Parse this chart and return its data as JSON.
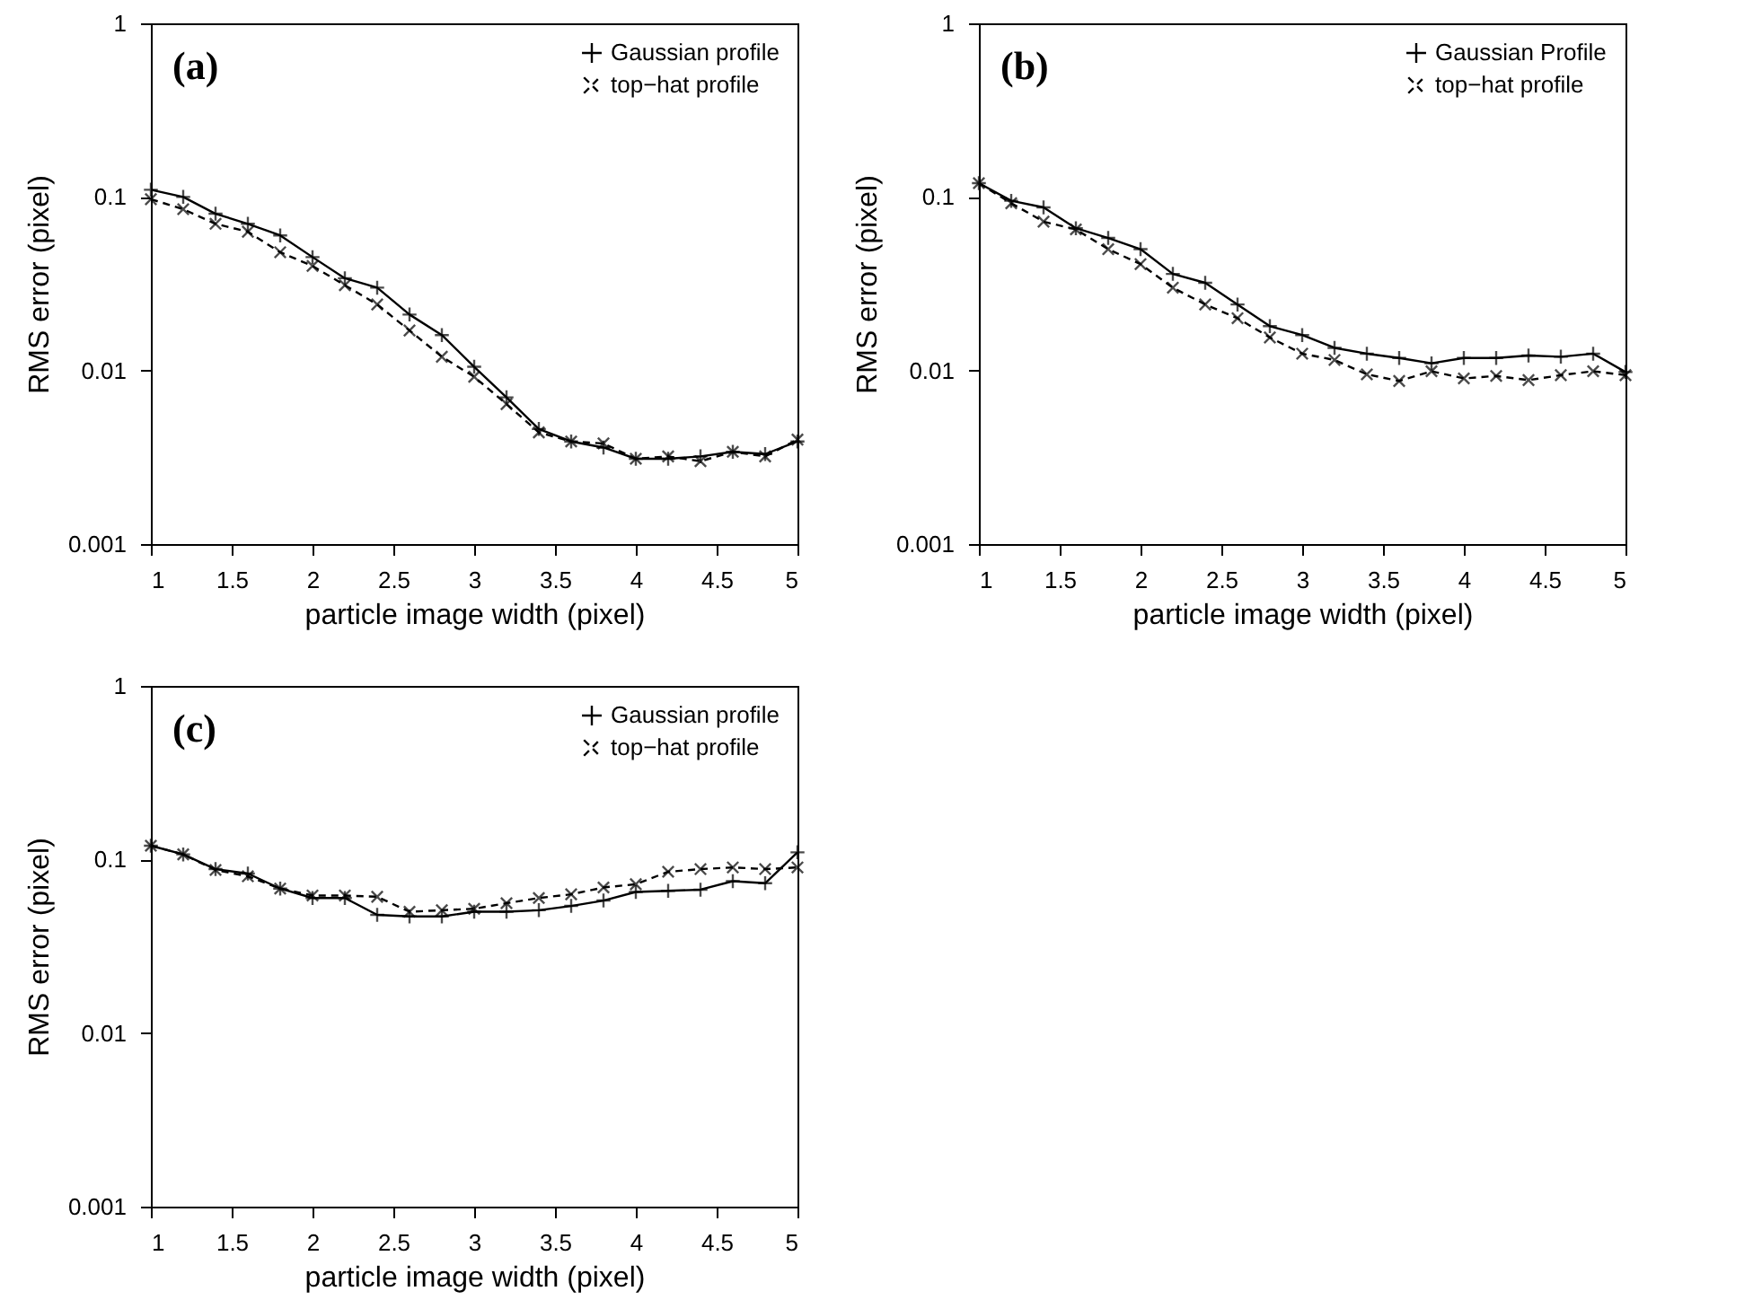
{
  "chart_data": [
    {
      "type": "line",
      "annotations": [
        "(a)"
      ],
      "xlabel": "particle image width (pixel)",
      "ylabel": "RMS error (pixel)",
      "log": "y",
      "xlim": [
        1,
        5
      ],
      "ylim": [
        0.001,
        1
      ],
      "xticks": [
        1,
        1.5,
        2,
        2.5,
        3,
        3.5,
        4,
        4.5,
        5
      ],
      "yticks": [
        0.001,
        0.01,
        0.1,
        1
      ],
      "legend": "top right",
      "marker": "cross",
      "x": [
        1,
        1.2,
        1.4,
        1.6,
        1.8,
        2,
        2.2,
        2.4,
        2.6,
        2.8,
        3,
        3.2,
        3.4,
        3.6,
        3.8,
        4,
        4.2,
        4.4,
        4.6,
        4.8,
        5
      ],
      "series": [
        {
          "name": "Gaussian profile",
          "color": "#000000",
          "line_style": "solid",
          "values": [
            0.11,
            0.1,
            0.08,
            0.07,
            0.06,
            0.045,
            0.034,
            0.03,
            0.021,
            0.016,
            0.0105,
            0.007,
            0.0046,
            0.0039,
            0.0036,
            0.0031,
            0.0031,
            0.0032,
            0.0034,
            0.0033,
            0.0039
          ]
        },
        {
          "name": "top−hat profile",
          "color": "#000000",
          "line_style": "dashed",
          "values": [
            0.097,
            0.085,
            0.07,
            0.063,
            0.048,
            0.04,
            0.031,
            0.024,
            0.017,
            0.012,
            0.0092,
            0.0064,
            0.0044,
            0.0039,
            0.0038,
            0.0031,
            0.0032,
            0.003,
            0.0034,
            0.0032,
            0.004
          ]
        }
      ]
    },
    {
      "type": "line",
      "annotations": [
        "(b)"
      ],
      "xlabel": "particle image width (pixel)",
      "ylabel": "RMS error (pixel)",
      "log": "y",
      "xlim": [
        1,
        5
      ],
      "ylim": [
        0.001,
        1
      ],
      "xticks": [
        1,
        1.5,
        2,
        2.5,
        3,
        3.5,
        4,
        4.5,
        5
      ],
      "yticks": [
        0.001,
        0.01,
        0.1,
        1
      ],
      "legend": "top right",
      "marker": "cross",
      "x": [
        1,
        1.2,
        1.4,
        1.6,
        1.8,
        2,
        2.2,
        2.4,
        2.6,
        2.8,
        3,
        3.2,
        3.4,
        3.6,
        3.8,
        4,
        4.2,
        4.4,
        4.6,
        4.8,
        5
      ],
      "series": [
        {
          "name": "Gaussian Profile",
          "color": "#000000",
          "line_style": "solid",
          "values": [
            0.12,
            0.095,
            0.087,
            0.066,
            0.058,
            0.05,
            0.036,
            0.032,
            0.024,
            0.018,
            0.016,
            0.0135,
            0.0125,
            0.0118,
            0.011,
            0.0118,
            0.0118,
            0.0122,
            0.012,
            0.0125,
            0.0098
          ]
        },
        {
          "name": "top−hat profile",
          "color": "#000000",
          "line_style": "dashed",
          "values": [
            0.12,
            0.092,
            0.072,
            0.065,
            0.05,
            0.041,
            0.03,
            0.024,
            0.02,
            0.0155,
            0.0125,
            0.0115,
            0.0095,
            0.0087,
            0.0099,
            0.009,
            0.0093,
            0.0088,
            0.0094,
            0.0099,
            0.0094
          ]
        }
      ]
    },
    {
      "type": "line",
      "annotations": [
        "(c)"
      ],
      "xlabel": "particle image width (pixel)",
      "ylabel": "RMS error (pixel)",
      "log": "y",
      "xlim": [
        1,
        5
      ],
      "ylim": [
        0.001,
        1
      ],
      "xticks": [
        1,
        1.5,
        2,
        2.5,
        3,
        3.5,
        4,
        4.5,
        5
      ],
      "yticks": [
        0.001,
        0.01,
        0.1,
        1
      ],
      "legend": "top right",
      "marker": "cross",
      "x": [
        1,
        1.2,
        1.4,
        1.6,
        1.8,
        2,
        2.2,
        2.4,
        2.6,
        2.8,
        3,
        3.2,
        3.4,
        3.6,
        3.8,
        4,
        4.2,
        4.4,
        4.6,
        4.8,
        5
      ],
      "series": [
        {
          "name": "Gaussian profile",
          "color": "#000000",
          "line_style": "solid",
          "values": [
            0.12,
            0.107,
            0.088,
            0.083,
            0.068,
            0.06,
            0.06,
            0.048,
            0.047,
            0.047,
            0.05,
            0.05,
            0.051,
            0.054,
            0.058,
            0.065,
            0.066,
            0.067,
            0.075,
            0.073,
            0.11
          ]
        },
        {
          "name": "top−hat profile",
          "color": "#000000",
          "line_style": "dashed",
          "values": [
            0.12,
            0.107,
            0.087,
            0.08,
            0.068,
            0.062,
            0.062,
            0.061,
            0.05,
            0.051,
            0.052,
            0.056,
            0.06,
            0.063,
            0.069,
            0.072,
            0.085,
            0.088,
            0.09,
            0.088,
            0.09
          ]
        }
      ]
    }
  ]
}
